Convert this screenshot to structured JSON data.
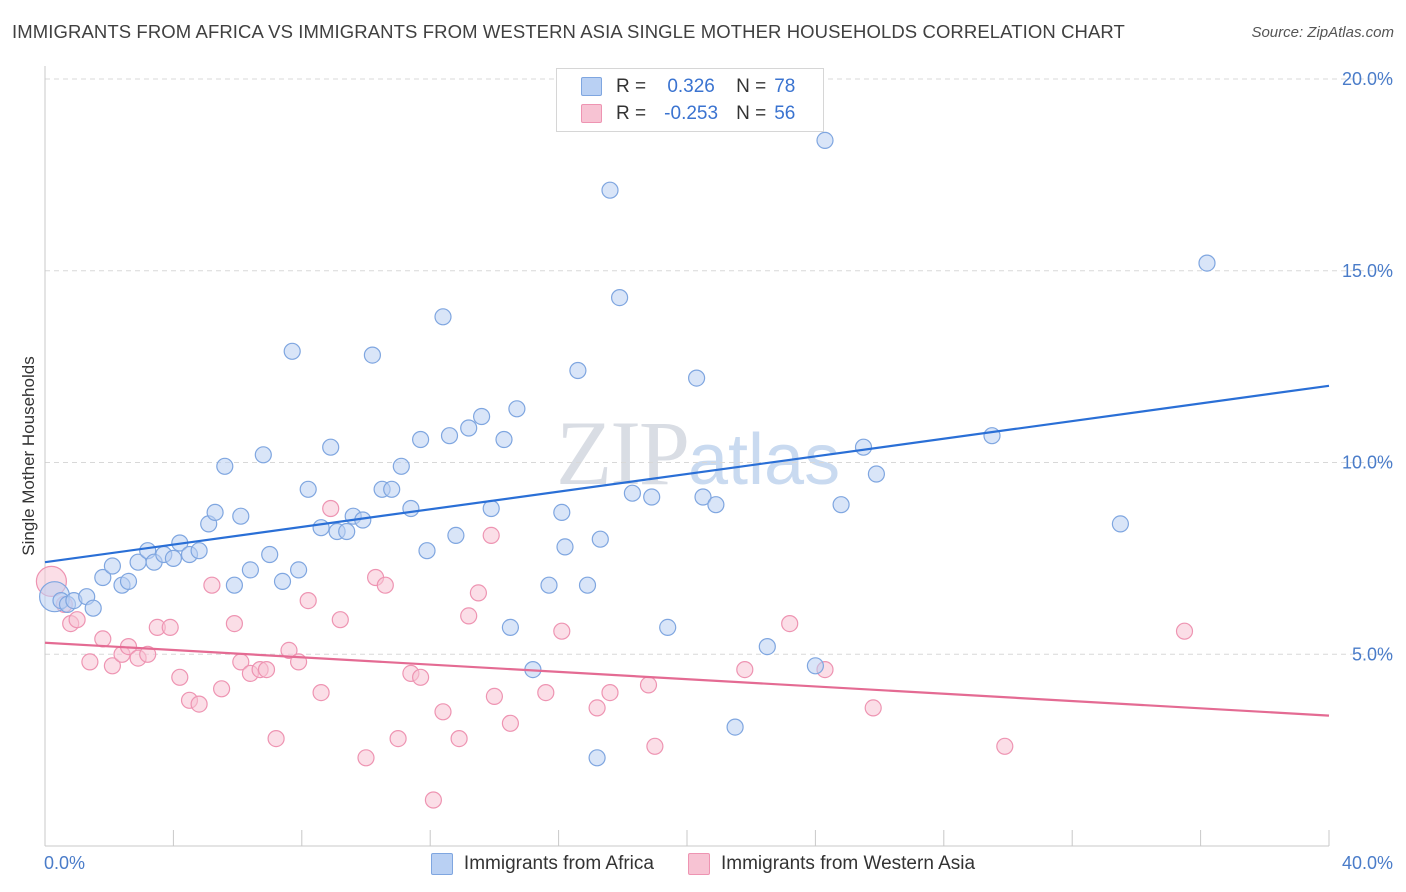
{
  "title": "IMMIGRANTS FROM AFRICA VS IMMIGRANTS FROM WESTERN ASIA SINGLE MOTHER HOUSEHOLDS CORRELATION CHART",
  "source": "Source: ZipAtlas.com",
  "watermark": {
    "zip": "ZIP",
    "atlas": "atlas"
  },
  "legend": {
    "rows": [
      {
        "r_label": "R =",
        "r_value": "0.326",
        "n_label": "N =",
        "n_value": "78"
      },
      {
        "r_label": "R =",
        "r_value": "-0.253",
        "n_label": "N =",
        "n_value": "56"
      }
    ]
  },
  "colors": {
    "blue_fill": "#b9d0f3",
    "blue_stroke": "#7fa6e0",
    "blue_line": "#2a6fd6",
    "pink_fill": "#f7c3d3",
    "pink_stroke": "#ee94b2",
    "pink_line": "#e46b93",
    "grid": "#d8d8d8",
    "tick_text": "#4a7cc9"
  },
  "chart_data": {
    "type": "scatter",
    "title": "IMMIGRANTS FROM AFRICA VS IMMIGRANTS FROM WESTERN ASIA SINGLE MOTHER HOUSEHOLDS CORRELATION CHART",
    "xlabel": "",
    "ylabel": "Single Mother Households",
    "xlim": [
      0,
      40
    ],
    "ylim": [
      0,
      20
    ],
    "x_tick_labels": [
      "0.0%",
      "40.0%"
    ],
    "y_ticks": [
      5,
      10,
      15,
      20
    ],
    "y_tick_labels": [
      "5.0%",
      "10.0%",
      "15.0%",
      "20.0%"
    ],
    "grid": true,
    "legend_position": "bottom",
    "series": [
      {
        "name": "Immigrants from Africa",
        "color": "blue",
        "trend": {
          "x": [
            0,
            40
          ],
          "y": [
            7.4,
            12.0
          ]
        },
        "points": [
          [
            0.3,
            6.5
          ],
          [
            0.5,
            6.4
          ],
          [
            0.7,
            6.3
          ],
          [
            0.9,
            6.4
          ],
          [
            1.3,
            6.5
          ],
          [
            1.5,
            6.2
          ],
          [
            1.8,
            7.0
          ],
          [
            2.1,
            7.3
          ],
          [
            2.4,
            6.8
          ],
          [
            2.6,
            6.9
          ],
          [
            2.9,
            7.4
          ],
          [
            3.2,
            7.7
          ],
          [
            3.4,
            7.4
          ],
          [
            3.7,
            7.6
          ],
          [
            4.0,
            7.5
          ],
          [
            4.2,
            7.9
          ],
          [
            4.5,
            7.6
          ],
          [
            4.8,
            7.7
          ],
          [
            5.1,
            8.4
          ],
          [
            5.3,
            8.7
          ],
          [
            5.6,
            9.9
          ],
          [
            5.9,
            6.8
          ],
          [
            6.1,
            8.6
          ],
          [
            6.4,
            7.2
          ],
          [
            6.8,
            10.2
          ],
          [
            7.0,
            7.6
          ],
          [
            7.4,
            6.9
          ],
          [
            7.7,
            12.9
          ],
          [
            7.9,
            7.2
          ],
          [
            8.2,
            9.3
          ],
          [
            8.6,
            8.3
          ],
          [
            8.9,
            10.4
          ],
          [
            9.1,
            8.2
          ],
          [
            9.4,
            8.2
          ],
          [
            9.6,
            8.6
          ],
          [
            9.9,
            8.5
          ],
          [
            10.2,
            12.8
          ],
          [
            10.5,
            9.3
          ],
          [
            10.8,
            9.3
          ],
          [
            11.1,
            9.9
          ],
          [
            11.4,
            8.8
          ],
          [
            11.7,
            10.6
          ],
          [
            11.9,
            7.7
          ],
          [
            12.4,
            13.8
          ],
          [
            12.6,
            10.7
          ],
          [
            12.8,
            8.1
          ],
          [
            13.2,
            10.9
          ],
          [
            13.6,
            11.2
          ],
          [
            13.9,
            8.8
          ],
          [
            14.3,
            10.6
          ],
          [
            14.5,
            5.7
          ],
          [
            14.7,
            11.4
          ],
          [
            15.2,
            4.6
          ],
          [
            15.7,
            6.8
          ],
          [
            16.1,
            8.7
          ],
          [
            16.2,
            7.8
          ],
          [
            16.6,
            12.4
          ],
          [
            16.9,
            6.8
          ],
          [
            17.3,
            8.0
          ],
          [
            17.6,
            17.1
          ],
          [
            17.9,
            14.3
          ],
          [
            17.2,
            2.3
          ],
          [
            18.3,
            9.2
          ],
          [
            18.9,
            9.1
          ],
          [
            19.4,
            5.7
          ],
          [
            20.3,
            12.2
          ],
          [
            20.5,
            9.1
          ],
          [
            20.9,
            8.9
          ],
          [
            21.5,
            3.1
          ],
          [
            22.5,
            5.2
          ],
          [
            24.0,
            4.7
          ],
          [
            24.8,
            8.9
          ],
          [
            24.3,
            18.4
          ],
          [
            25.5,
            10.4
          ],
          [
            25.9,
            9.7
          ],
          [
            29.5,
            10.7
          ],
          [
            33.5,
            8.4
          ],
          [
            36.2,
            15.2
          ]
        ]
      },
      {
        "name": "Immigrants from Western Asia",
        "color": "pink",
        "trend": {
          "x": [
            0,
            40
          ],
          "y": [
            5.3,
            3.4
          ]
        },
        "points": [
          [
            0.2,
            6.9
          ],
          [
            0.6,
            6.3
          ],
          [
            0.8,
            5.8
          ],
          [
            1.0,
            5.9
          ],
          [
            1.4,
            4.8
          ],
          [
            1.8,
            5.4
          ],
          [
            2.1,
            4.7
          ],
          [
            2.4,
            5.0
          ],
          [
            2.6,
            5.2
          ],
          [
            2.9,
            4.9
          ],
          [
            3.2,
            5.0
          ],
          [
            3.5,
            5.7
          ],
          [
            3.9,
            5.7
          ],
          [
            4.2,
            4.4
          ],
          [
            4.5,
            3.8
          ],
          [
            4.8,
            3.7
          ],
          [
            5.2,
            6.8
          ],
          [
            5.5,
            4.1
          ],
          [
            5.9,
            5.8
          ],
          [
            6.1,
            4.8
          ],
          [
            6.4,
            4.5
          ],
          [
            6.7,
            4.6
          ],
          [
            6.9,
            4.6
          ],
          [
            7.2,
            2.8
          ],
          [
            7.6,
            5.1
          ],
          [
            7.9,
            4.8
          ],
          [
            8.2,
            6.4
          ],
          [
            8.6,
            4.0
          ],
          [
            8.9,
            8.8
          ],
          [
            9.2,
            5.9
          ],
          [
            10.0,
            2.3
          ],
          [
            10.3,
            7.0
          ],
          [
            10.6,
            6.8
          ],
          [
            11.0,
            2.8
          ],
          [
            11.4,
            4.5
          ],
          [
            11.7,
            4.4
          ],
          [
            12.1,
            1.2
          ],
          [
            12.4,
            3.5
          ],
          [
            12.9,
            2.8
          ],
          [
            13.2,
            6.0
          ],
          [
            13.5,
            6.6
          ],
          [
            13.9,
            8.1
          ],
          [
            14.0,
            3.9
          ],
          [
            14.5,
            3.2
          ],
          [
            15.6,
            4.0
          ],
          [
            16.1,
            5.6
          ],
          [
            17.2,
            3.6
          ],
          [
            17.6,
            4.0
          ],
          [
            18.8,
            4.2
          ],
          [
            19.0,
            2.6
          ],
          [
            21.8,
            4.6
          ],
          [
            23.2,
            5.8
          ],
          [
            24.3,
            4.6
          ],
          [
            25.8,
            3.6
          ],
          [
            29.9,
            2.6
          ],
          [
            35.5,
            5.6
          ]
        ]
      }
    ]
  }
}
